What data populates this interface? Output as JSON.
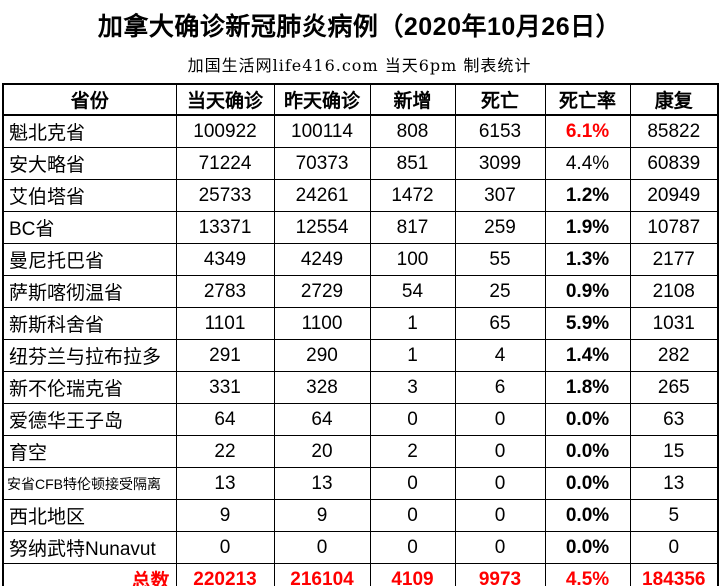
{
  "page": {
    "title": "加拿大确诊新冠肺炎病例（2020年10月26日）",
    "subtitle": "加国生活网life416.com 当天6pm 制表统计"
  },
  "colors": {
    "accent_red": "#ff0000",
    "border": "#000000",
    "background": "#ffffff"
  },
  "chart_data": {
    "type": "table",
    "title": "加拿大确诊新冠肺炎病例（2020年10月26日）",
    "subtitle": "加国生活网life416.com 当天6pm 制表统计",
    "columns": [
      "省份",
      "当天确诊",
      "昨天确诊",
      "新增",
      "死亡",
      "死亡率",
      "康复"
    ],
    "rows": [
      {
        "province": "魁北克省",
        "today": "100922",
        "yesterday": "100114",
        "new": "808",
        "deaths": "6153",
        "rate": "6.1%",
        "recovered": "85822",
        "rate_style": "red-bold",
        "small": false
      },
      {
        "province": "安大略省",
        "today": "71224",
        "yesterday": "70373",
        "new": "851",
        "deaths": "3099",
        "rate": "4.4%",
        "recovered": "60839",
        "rate_style": "regular",
        "small": false
      },
      {
        "province": "艾伯塔省",
        "today": "25733",
        "yesterday": "24261",
        "new": "1472",
        "deaths": "307",
        "rate": "1.2%",
        "recovered": "20949",
        "rate_style": "bold",
        "small": false
      },
      {
        "province": "BC省",
        "today": "13371",
        "yesterday": "12554",
        "new": "817",
        "deaths": "259",
        "rate": "1.9%",
        "recovered": "10787",
        "rate_style": "bold",
        "small": false
      },
      {
        "province": "曼尼托巴省",
        "today": "4349",
        "yesterday": "4249",
        "new": "100",
        "deaths": "55",
        "rate": "1.3%",
        "recovered": "2177",
        "rate_style": "bold",
        "small": false
      },
      {
        "province": "萨斯喀彻温省",
        "today": "2783",
        "yesterday": "2729",
        "new": "54",
        "deaths": "25",
        "rate": "0.9%",
        "recovered": "2108",
        "rate_style": "bold",
        "small": false
      },
      {
        "province": "新斯科舍省",
        "today": "1101",
        "yesterday": "1100",
        "new": "1",
        "deaths": "65",
        "rate": "5.9%",
        "recovered": "1031",
        "rate_style": "bold",
        "small": false
      },
      {
        "province": "纽芬兰与拉布拉多",
        "today": "291",
        "yesterday": "290",
        "new": "1",
        "deaths": "4",
        "rate": "1.4%",
        "recovered": "282",
        "rate_style": "bold",
        "small": false
      },
      {
        "province": "新不伦瑞克省",
        "today": "331",
        "yesterday": "328",
        "new": "3",
        "deaths": "6",
        "rate": "1.8%",
        "recovered": "265",
        "rate_style": "bold",
        "small": false
      },
      {
        "province": "爱德华王子岛",
        "today": "64",
        "yesterday": "64",
        "new": "0",
        "deaths": "0",
        "rate": "0.0%",
        "recovered": "63",
        "rate_style": "bold",
        "small": false
      },
      {
        "province": "育空",
        "today": "22",
        "yesterday": "20",
        "new": "2",
        "deaths": "0",
        "rate": "0.0%",
        "recovered": "15",
        "rate_style": "bold",
        "small": false
      },
      {
        "province": "安省CFB特伦顿接受隔离",
        "today": "13",
        "yesterday": "13",
        "new": "0",
        "deaths": "0",
        "rate": "0.0%",
        "recovered": "13",
        "rate_style": "bold",
        "small": true
      },
      {
        "province": "西北地区",
        "today": "9",
        "yesterday": "9",
        "new": "0",
        "deaths": "0",
        "rate": "0.0%",
        "recovered": "5",
        "rate_style": "bold",
        "small": false
      },
      {
        "province": "努纳武特Nunavut",
        "today": "0",
        "yesterday": "0",
        "new": "0",
        "deaths": "0",
        "rate": "0.0%",
        "recovered": "0",
        "rate_style": "bold",
        "small": false
      }
    ],
    "total_row": {
      "label": "总数",
      "today": "220213",
      "yesterday": "216104",
      "new": "4109",
      "deaths": "9973",
      "rate": "4.5%",
      "recovered": "184356"
    }
  }
}
